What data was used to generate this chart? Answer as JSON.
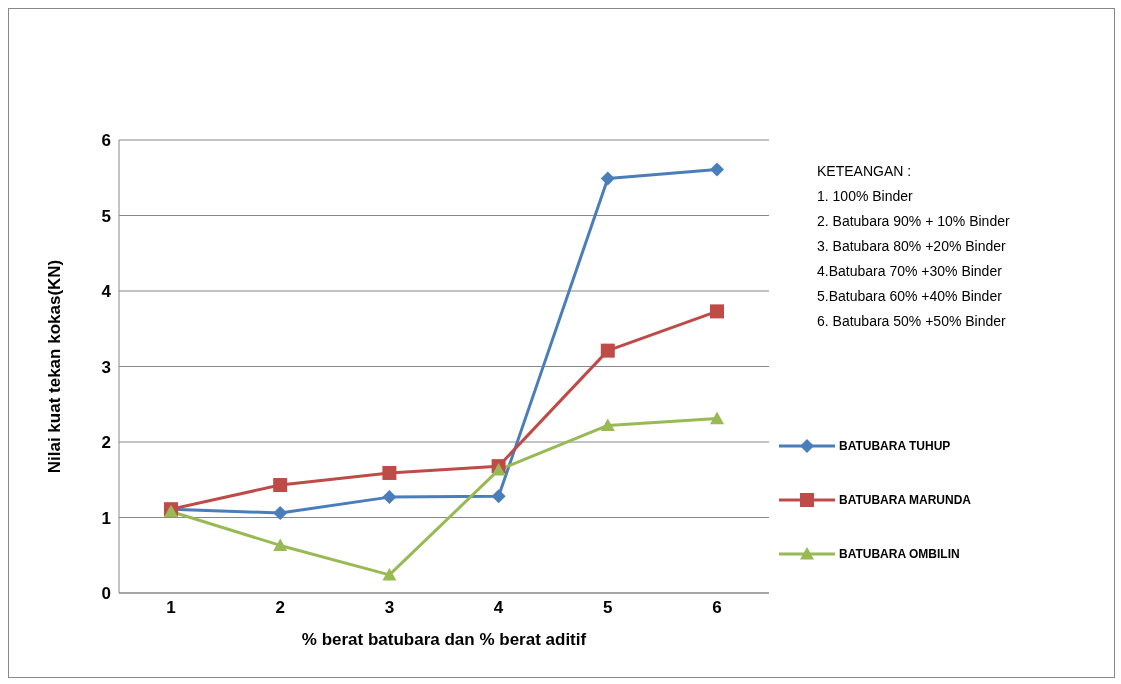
{
  "chart_data": {
    "type": "line",
    "xlabel": "% berat batubara dan % berat aditif",
    "ylabel": "Nilai kuat tekan kokas(KN)",
    "categories": [
      "1",
      "2",
      "3",
      "4",
      "5",
      "6"
    ],
    "series": [
      {
        "name": "BATUBARA TUHUP",
        "color": "#4a7ebb",
        "marker": "diamond",
        "values": [
          1.11,
          1.06,
          1.27,
          1.28,
          5.49,
          5.61
        ]
      },
      {
        "name": "BATUBARA MARUNDA",
        "color": "#be4b48",
        "marker": "square",
        "values": [
          1.11,
          1.43,
          1.59,
          1.68,
          3.21,
          3.73
        ]
      },
      {
        "name": "BATUBARA OMBILIN",
        "color": "#98b954",
        "marker": "triangle",
        "values": [
          1.08,
          0.63,
          0.24,
          1.63,
          2.22,
          2.31
        ]
      }
    ],
    "ylim": [
      0,
      6
    ],
    "yticks": [
      0,
      1,
      2,
      3,
      4,
      5,
      6
    ],
    "grid": "y",
    "legend": "right",
    "line_style": "solid",
    "annotations": [
      "KETEANGAN :",
      "1. 100% Binder",
      "2. Batubara  90% + 10% Binder",
      "3. Batubara  80% +20% Binder",
      "4.Batubara  70% +30% Binder",
      "5.Batubara  60% +40% Binder",
      "6. Batubara  50% +50% Binder"
    ]
  }
}
